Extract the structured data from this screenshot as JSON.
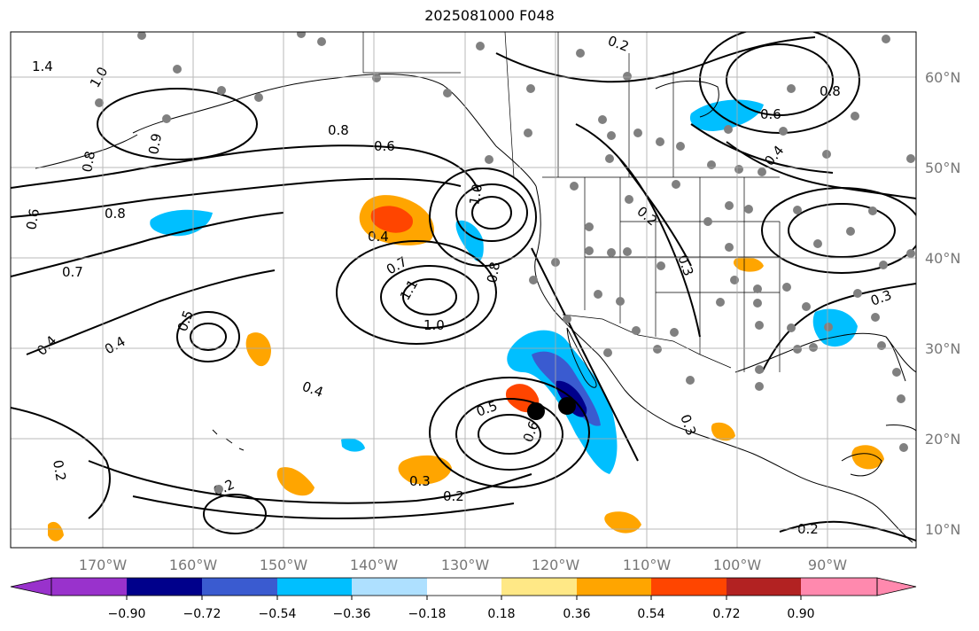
{
  "title": "2025081000 F048",
  "map": {
    "longitude_ticks": [
      "170°W",
      "160°W",
      "150°W",
      "140°W",
      "130°W",
      "120°W",
      "110°W",
      "100°W",
      "90°W"
    ],
    "latitude_ticks": [
      "60°N",
      "50°N",
      "40°N",
      "30°N",
      "20°N",
      "10°N"
    ],
    "lon_range": [
      -180,
      -80
    ],
    "lat_range": [
      8,
      65
    ],
    "gridlines": true
  },
  "contour_labels": [
    "1.4",
    "1.0",
    "0.8",
    "0.6",
    "0.7",
    "0.4",
    "0.5",
    "0.3",
    "0.2",
    "0.9",
    "1.1"
  ],
  "storm_markers": [
    {
      "name": "storm-1",
      "lon": -122,
      "lat": 23
    },
    {
      "name": "storm-2",
      "lon": -118.5,
      "lat": 23.8
    }
  ],
  "colorbar": {
    "tick_labels": [
      "−0.90",
      "−0.72",
      "−0.54",
      "−0.36",
      "−0.18",
      "0.18",
      "0.36",
      "0.54",
      "0.72",
      "0.90"
    ],
    "colors": [
      "#9932cc",
      "#00008b",
      "#3a5bd0",
      "#00bfff",
      "#aee0ff",
      "#ffffff",
      "#ffe886",
      "#ffa500",
      "#ff4500",
      "#b22222",
      "#ff89ae"
    ]
  }
}
